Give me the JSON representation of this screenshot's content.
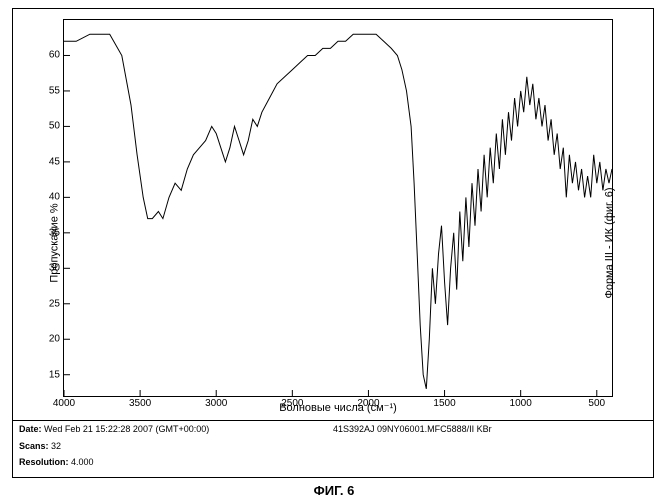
{
  "caption": "ФИГ. 6",
  "right_title": "Форма III - ИК (фиг. 6)",
  "chart": {
    "type": "line",
    "xlabel": "Волновые числа (см⁻¹)",
    "ylabel": "Пропускание %",
    "xlim": [
      4000,
      400
    ],
    "ylim": [
      12,
      65
    ],
    "xticks": [
      4000,
      3500,
      3000,
      2500,
      2000,
      1500,
      1000,
      500
    ],
    "yticks": [
      15,
      20,
      25,
      30,
      35,
      40,
      45,
      50,
      55,
      60
    ],
    "line_color": "#000000",
    "line_width": 1.0,
    "background_color": "#ffffff",
    "axis_color": "#000000",
    "label_fontsize": 11,
    "tick_fontsize": 10,
    "tick_inside": true,
    "series": [
      {
        "x": 4000,
        "y": 62
      },
      {
        "x": 3920,
        "y": 62
      },
      {
        "x": 3830,
        "y": 63
      },
      {
        "x": 3750,
        "y": 63
      },
      {
        "x": 3700,
        "y": 63
      },
      {
        "x": 3620,
        "y": 60
      },
      {
        "x": 3560,
        "y": 53
      },
      {
        "x": 3520,
        "y": 46
      },
      {
        "x": 3480,
        "y": 40
      },
      {
        "x": 3450,
        "y": 37
      },
      {
        "x": 3420,
        "y": 37
      },
      {
        "x": 3380,
        "y": 38
      },
      {
        "x": 3350,
        "y": 37
      },
      {
        "x": 3310,
        "y": 40
      },
      {
        "x": 3270,
        "y": 42
      },
      {
        "x": 3230,
        "y": 41
      },
      {
        "x": 3190,
        "y": 44
      },
      {
        "x": 3150,
        "y": 46
      },
      {
        "x": 3110,
        "y": 47
      },
      {
        "x": 3070,
        "y": 48
      },
      {
        "x": 3030,
        "y": 50
      },
      {
        "x": 3000,
        "y": 49
      },
      {
        "x": 2970,
        "y": 47
      },
      {
        "x": 2940,
        "y": 45
      },
      {
        "x": 2910,
        "y": 47
      },
      {
        "x": 2880,
        "y": 50
      },
      {
        "x": 2850,
        "y": 48
      },
      {
        "x": 2820,
        "y": 46
      },
      {
        "x": 2790,
        "y": 48
      },
      {
        "x": 2760,
        "y": 51
      },
      {
        "x": 2730,
        "y": 50
      },
      {
        "x": 2700,
        "y": 52
      },
      {
        "x": 2650,
        "y": 54
      },
      {
        "x": 2600,
        "y": 56
      },
      {
        "x": 2550,
        "y": 57
      },
      {
        "x": 2500,
        "y": 58
      },
      {
        "x": 2450,
        "y": 59
      },
      {
        "x": 2400,
        "y": 60
      },
      {
        "x": 2350,
        "y": 60
      },
      {
        "x": 2300,
        "y": 61
      },
      {
        "x": 2250,
        "y": 61
      },
      {
        "x": 2200,
        "y": 62
      },
      {
        "x": 2150,
        "y": 62
      },
      {
        "x": 2100,
        "y": 63
      },
      {
        "x": 2050,
        "y": 63
      },
      {
        "x": 2000,
        "y": 63
      },
      {
        "x": 1950,
        "y": 63
      },
      {
        "x": 1900,
        "y": 62
      },
      {
        "x": 1850,
        "y": 61
      },
      {
        "x": 1810,
        "y": 60
      },
      {
        "x": 1780,
        "y": 58
      },
      {
        "x": 1750,
        "y": 55
      },
      {
        "x": 1720,
        "y": 50
      },
      {
        "x": 1700,
        "y": 42
      },
      {
        "x": 1680,
        "y": 32
      },
      {
        "x": 1660,
        "y": 22
      },
      {
        "x": 1640,
        "y": 15
      },
      {
        "x": 1620,
        "y": 13
      },
      {
        "x": 1600,
        "y": 20
      },
      {
        "x": 1580,
        "y": 30
      },
      {
        "x": 1560,
        "y": 25
      },
      {
        "x": 1540,
        "y": 32
      },
      {
        "x": 1520,
        "y": 36
      },
      {
        "x": 1500,
        "y": 28
      },
      {
        "x": 1480,
        "y": 22
      },
      {
        "x": 1460,
        "y": 30
      },
      {
        "x": 1440,
        "y": 35
      },
      {
        "x": 1420,
        "y": 27
      },
      {
        "x": 1400,
        "y": 38
      },
      {
        "x": 1380,
        "y": 31
      },
      {
        "x": 1360,
        "y": 40
      },
      {
        "x": 1340,
        "y": 33
      },
      {
        "x": 1320,
        "y": 42
      },
      {
        "x": 1300,
        "y": 36
      },
      {
        "x": 1280,
        "y": 44
      },
      {
        "x": 1260,
        "y": 38
      },
      {
        "x": 1240,
        "y": 46
      },
      {
        "x": 1220,
        "y": 40
      },
      {
        "x": 1200,
        "y": 47
      },
      {
        "x": 1180,
        "y": 42
      },
      {
        "x": 1160,
        "y": 49
      },
      {
        "x": 1140,
        "y": 44
      },
      {
        "x": 1120,
        "y": 51
      },
      {
        "x": 1100,
        "y": 46
      },
      {
        "x": 1080,
        "y": 52
      },
      {
        "x": 1060,
        "y": 48
      },
      {
        "x": 1040,
        "y": 54
      },
      {
        "x": 1020,
        "y": 50
      },
      {
        "x": 1000,
        "y": 55
      },
      {
        "x": 980,
        "y": 52
      },
      {
        "x": 960,
        "y": 57
      },
      {
        "x": 940,
        "y": 53
      },
      {
        "x": 920,
        "y": 56
      },
      {
        "x": 900,
        "y": 51
      },
      {
        "x": 880,
        "y": 54
      },
      {
        "x": 860,
        "y": 50
      },
      {
        "x": 840,
        "y": 53
      },
      {
        "x": 820,
        "y": 48
      },
      {
        "x": 800,
        "y": 51
      },
      {
        "x": 780,
        "y": 46
      },
      {
        "x": 760,
        "y": 49
      },
      {
        "x": 740,
        "y": 44
      },
      {
        "x": 720,
        "y": 47
      },
      {
        "x": 700,
        "y": 40
      },
      {
        "x": 680,
        "y": 46
      },
      {
        "x": 660,
        "y": 42
      },
      {
        "x": 640,
        "y": 45
      },
      {
        "x": 620,
        "y": 41
      },
      {
        "x": 600,
        "y": 44
      },
      {
        "x": 580,
        "y": 40
      },
      {
        "x": 560,
        "y": 43
      },
      {
        "x": 540,
        "y": 40
      },
      {
        "x": 520,
        "y": 46
      },
      {
        "x": 500,
        "y": 42
      },
      {
        "x": 480,
        "y": 45
      },
      {
        "x": 460,
        "y": 41
      },
      {
        "x": 440,
        "y": 44
      },
      {
        "x": 420,
        "y": 42
      },
      {
        "x": 400,
        "y": 44
      }
    ]
  },
  "info": {
    "date_label": "Date:",
    "date_value": "Wed Feb 21 15:22:28 2007 (GMT+00:00)",
    "sample_id": "41S392AJ  09NY06001.MFC5888/II  KBr",
    "scans_label": "Scans:",
    "scans_value": "32",
    "resolution_label": "Resolution:",
    "resolution_value": "4.000"
  }
}
